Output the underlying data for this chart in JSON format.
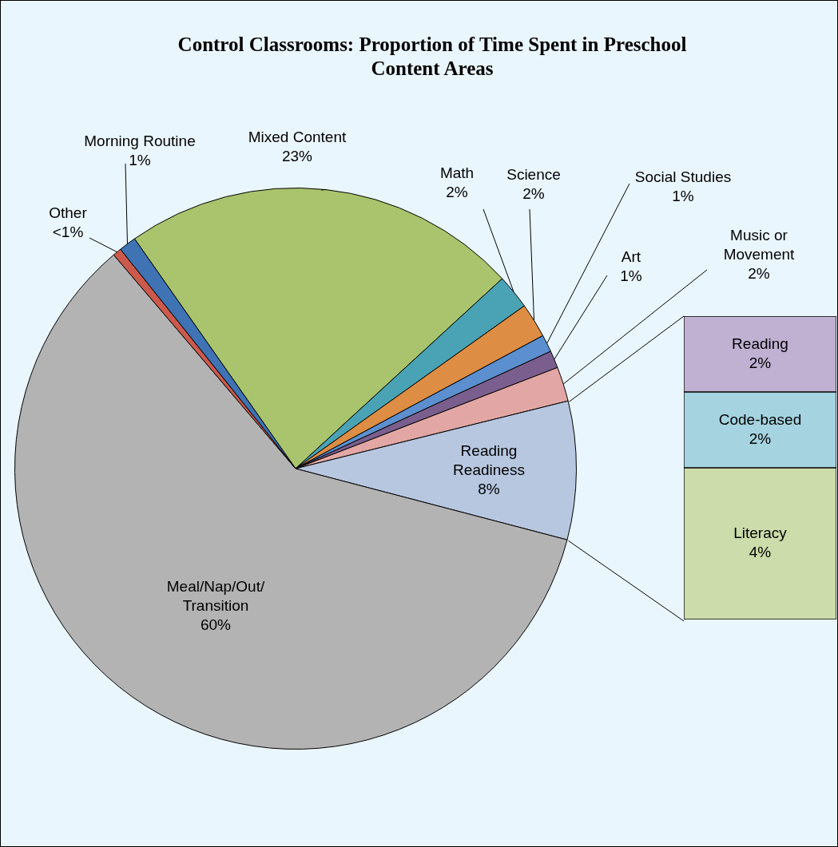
{
  "chart_data": [
    {
      "type": "pie",
      "title": "Control Classrooms: Proportion of Time Spent in Preschool Content Areas",
      "categories": [
        "Mixed Content",
        "Math",
        "Science",
        "Social Studies",
        "Art",
        "Music or Movement",
        "Reading Readiness",
        "Meal/Nap/Out/Transition",
        "Other",
        "Morning Routine"
      ],
      "values": [
        23,
        2,
        2,
        1,
        1,
        2,
        8,
        60,
        0.5,
        1
      ],
      "value_labels": [
        "23%",
        "2%",
        "2%",
        "1%",
        "1%",
        "2%",
        "8%",
        "60%",
        "<1%",
        "1%"
      ],
      "colors": [
        "#a9c46c",
        "#4aa3b4",
        "#dd8d44",
        "#5b8fcf",
        "#7a5e8e",
        "#e2a7a4",
        "#b8c7e0",
        "#b3b3b3",
        "#cc5a4c",
        "#3f73b4"
      ],
      "legend": false
    },
    {
      "type": "bar",
      "stacked": true,
      "categories": [
        null
      ],
      "legend": false,
      "series": [
        {
          "name": "Literacy",
          "color": "#ccdcaa",
          "values": [
            4
          ],
          "value_labels": [
            "4%"
          ]
        },
        {
          "name": "Code-based",
          "color": "#a5d4e0",
          "values": [
            2
          ],
          "value_labels": [
            "2%"
          ]
        },
        {
          "name": "Reading",
          "color": "#c0b1d2",
          "values": [
            2
          ],
          "value_labels": [
            "2%"
          ]
        }
      ]
    }
  ]
}
